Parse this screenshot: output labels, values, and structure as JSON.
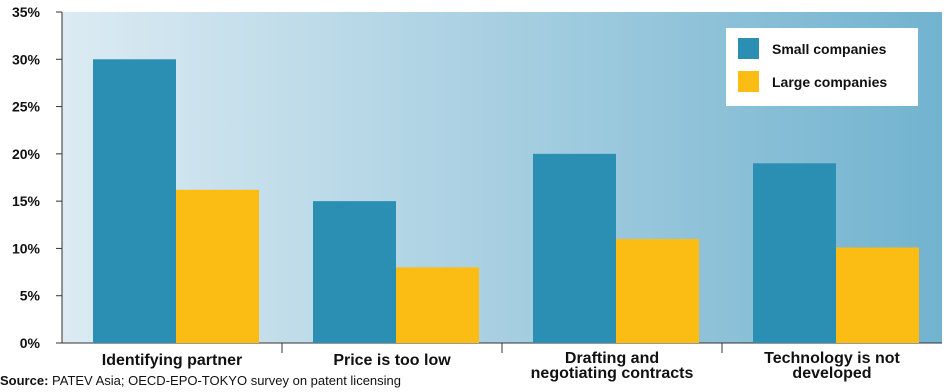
{
  "chart_data": {
    "type": "bar",
    "categories": [
      [
        "Identifying partner"
      ],
      [
        "Price is too low"
      ],
      [
        "Drafting and",
        "negotiating contracts"
      ],
      [
        "Technology is not",
        "developed"
      ]
    ],
    "series": [
      {
        "name": "Small companies",
        "color": "#2a8fb2",
        "values": [
          30,
          15,
          20,
          19
        ]
      },
      {
        "name": "Large companies",
        "color": "#fbbd13",
        "values": [
          16.2,
          8,
          11,
          10.1
        ]
      }
    ],
    "y_ticks": [
      "0%",
      "5%",
      "10%",
      "15%",
      "20%",
      "25%",
      "30%",
      "35%"
    ],
    "ylim": [
      0,
      35
    ],
    "legend_position": "top-right",
    "grid": false
  },
  "source": {
    "label": "Source:",
    "text": "PATEV Asia; OECD-EPO-TOKYO survey on patent licensing"
  }
}
